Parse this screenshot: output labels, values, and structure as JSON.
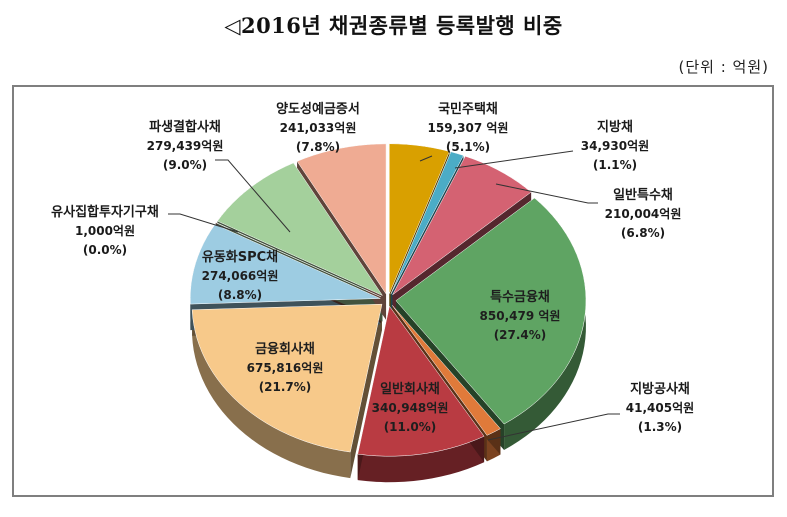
{
  "title": "◁2016년 채권종류별 등록발행 비중",
  "unit": "(단위 : 억원)",
  "chart_data": {
    "type": "pie",
    "title": "2016년 채권종류별 등록발행 비중",
    "unit": "억원",
    "style": "3D exploded pie",
    "slices": [
      {
        "name": "국민주택채",
        "value": 159307,
        "value_label": "159,307 억원",
        "percent": 5.1,
        "percent_label": "(5.1%)",
        "color": "#D9A000"
      },
      {
        "name": "지방채",
        "value": 34930,
        "value_label": "34,930억원",
        "percent": 1.1,
        "percent_label": "(1.1%)",
        "color": "#4BACC6"
      },
      {
        "name": "일반특수채",
        "value": 210004,
        "value_label": "210,004억원",
        "percent": 6.8,
        "percent_label": "(6.8%)",
        "color": "#D46272"
      },
      {
        "name": "특수금융채",
        "value": 850479,
        "value_label": "850,479 억원",
        "percent": 27.4,
        "percent_label": "(27.4%)",
        "color": "#5FA463"
      },
      {
        "name": "지방공사채",
        "value": 41405,
        "value_label": "41,405억원",
        "percent": 1.3,
        "percent_label": "(1.3%)",
        "color": "#E07A3A"
      },
      {
        "name": "일반회사채",
        "value": 340948,
        "value_label": "340,948억원",
        "percent": 11.0,
        "percent_label": "(11.0%)",
        "color": "#B93B42"
      },
      {
        "name": "금융회사채",
        "value": 675816,
        "value_label": "675,816억원",
        "percent": 21.7,
        "percent_label": "(21.7%)",
        "color": "#F7C98A"
      },
      {
        "name": "유동화SPC채",
        "value": 274066,
        "value_label": "274,066억원",
        "percent": 8.8,
        "percent_label": "(8.8%)",
        "color": "#9DCCE2"
      },
      {
        "name": "유사집합투자기구채",
        "value": 1000,
        "value_label": "1,000억원",
        "percent": 0.0,
        "percent_label": "(0.0%)",
        "color": "#8E5B4A"
      },
      {
        "name": "파생결합사채",
        "value": 279439,
        "value_label": "279,439억원",
        "percent": 9.0,
        "percent_label": "(9.0%)",
        "color": "#A4D09C"
      },
      {
        "name": "양도성예금증서",
        "value": 241033,
        "value_label": "241,033억원",
        "percent": 7.8,
        "percent_label": "(7.8%)",
        "color": "#EFAB93"
      }
    ]
  }
}
